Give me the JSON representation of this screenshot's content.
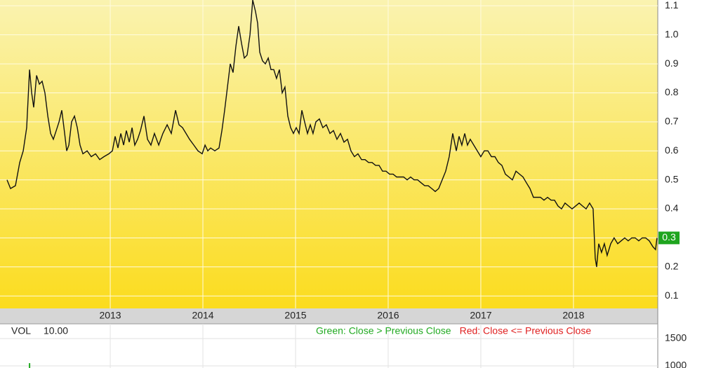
{
  "chart_data": [
    {
      "type": "line",
      "x": [
        2011.886,
        2011.924,
        2011.977,
        2012.023,
        2012.061,
        2012.098,
        2012.129,
        2012.152,
        2012.174,
        2012.205,
        2012.235,
        2012.265,
        2012.295,
        2012.326,
        2012.356,
        2012.386,
        2012.417,
        2012.447,
        2012.477,
        2012.508,
        2012.53,
        2012.553,
        2012.583,
        2012.614,
        2012.644,
        2012.674,
        2012.705,
        2012.75,
        2012.795,
        2012.841,
        2012.886,
        2012.932,
        2012.985,
        2013.023,
        2013.053,
        2013.083,
        2013.114,
        2013.144,
        2013.174,
        2013.205,
        2013.235,
        2013.265,
        2013.295,
        2013.326,
        2013.364,
        2013.402,
        2013.439,
        2013.477,
        2013.523,
        2013.568,
        2013.614,
        2013.659,
        2013.705,
        2013.742,
        2013.78,
        2013.818,
        2013.856,
        2013.902,
        2013.947,
        2013.992,
        2014.023,
        2014.053,
        2014.083,
        2014.129,
        2014.174,
        2014.205,
        2014.235,
        2014.265,
        2014.295,
        2014.326,
        2014.356,
        2014.386,
        2014.417,
        2014.447,
        2014.477,
        2014.508,
        2014.538,
        2014.568,
        2014.591,
        2014.614,
        2014.644,
        2014.674,
        2014.705,
        2014.735,
        2014.765,
        2014.795,
        2014.826,
        2014.856,
        2014.886,
        2014.917,
        2014.947,
        2014.977,
        2015.008,
        2015.038,
        2015.068,
        2015.098,
        2015.129,
        2015.159,
        2015.189,
        2015.22,
        2015.258,
        2015.295,
        2015.333,
        2015.371,
        2015.409,
        2015.447,
        2015.485,
        2015.523,
        2015.561,
        2015.598,
        2015.636,
        2015.674,
        2015.712,
        2015.75,
        2015.788,
        2015.826,
        2015.864,
        2015.902,
        2015.939,
        2015.977,
        2016.015,
        2016.053,
        2016.091,
        2016.129,
        2016.167,
        2016.205,
        2016.242,
        2016.28,
        2016.318,
        2016.356,
        2016.394,
        2016.432,
        2016.47,
        2016.508,
        2016.545,
        2016.583,
        2016.621,
        2016.659,
        2016.697,
        2016.735,
        2016.765,
        2016.795,
        2016.826,
        2016.856,
        2016.886,
        2016.924,
        2016.962,
        2017.0,
        2017.038,
        2017.076,
        2017.114,
        2017.152,
        2017.189,
        2017.227,
        2017.265,
        2017.303,
        2017.341,
        2017.379,
        2017.417,
        2017.455,
        2017.492,
        2017.53,
        2017.568,
        2017.606,
        2017.644,
        2017.682,
        2017.72,
        2017.758,
        2017.795,
        2017.833,
        2017.871,
        2017.909,
        2017.947,
        2017.985,
        2018.023,
        2018.061,
        2018.098,
        2018.136,
        2018.174,
        2018.212,
        2018.235,
        2018.25,
        2018.273,
        2018.303,
        2018.333,
        2018.364,
        2018.402,
        2018.439,
        2018.477,
        2018.515,
        2018.553,
        2018.591,
        2018.629,
        2018.667,
        2018.705,
        2018.742,
        2018.78,
        2018.818,
        2018.856,
        2018.886,
        2018.902
      ],
      "series": [
        {
          "color": "#111111",
          "values": [
            0.5,
            0.47,
            0.48,
            0.56,
            0.6,
            0.68,
            0.88,
            0.8,
            0.75,
            0.86,
            0.83,
            0.84,
            0.8,
            0.72,
            0.66,
            0.64,
            0.67,
            0.7,
            0.74,
            0.66,
            0.6,
            0.62,
            0.7,
            0.72,
            0.68,
            0.62,
            0.59,
            0.6,
            0.58,
            0.59,
            0.57,
            0.58,
            0.59,
            0.6,
            0.65,
            0.61,
            0.66,
            0.62,
            0.67,
            0.63,
            0.68,
            0.62,
            0.64,
            0.67,
            0.72,
            0.64,
            0.62,
            0.66,
            0.62,
            0.66,
            0.69,
            0.66,
            0.74,
            0.69,
            0.68,
            0.66,
            0.64,
            0.62,
            0.6,
            0.59,
            0.62,
            0.6,
            0.61,
            0.6,
            0.61,
            0.67,
            0.74,
            0.82,
            0.9,
            0.87,
            0.96,
            1.03,
            0.97,
            0.92,
            0.93,
            1.0,
            1.12,
            1.08,
            1.04,
            0.94,
            0.91,
            0.9,
            0.92,
            0.88,
            0.88,
            0.85,
            0.88,
            0.8,
            0.82,
            0.72,
            0.68,
            0.66,
            0.68,
            0.66,
            0.74,
            0.7,
            0.66,
            0.69,
            0.66,
            0.7,
            0.71,
            0.68,
            0.69,
            0.66,
            0.67,
            0.64,
            0.66,
            0.63,
            0.64,
            0.6,
            0.58,
            0.59,
            0.57,
            0.57,
            0.56,
            0.56,
            0.55,
            0.55,
            0.53,
            0.53,
            0.52,
            0.52,
            0.51,
            0.51,
            0.51,
            0.5,
            0.51,
            0.5,
            0.5,
            0.49,
            0.48,
            0.48,
            0.47,
            0.46,
            0.47,
            0.5,
            0.53,
            0.58,
            0.66,
            0.6,
            0.65,
            0.62,
            0.66,
            0.62,
            0.64,
            0.62,
            0.6,
            0.58,
            0.6,
            0.6,
            0.58,
            0.58,
            0.56,
            0.55,
            0.52,
            0.51,
            0.5,
            0.53,
            0.52,
            0.51,
            0.49,
            0.47,
            0.44,
            0.44,
            0.44,
            0.43,
            0.44,
            0.43,
            0.43,
            0.41,
            0.4,
            0.42,
            0.41,
            0.4,
            0.41,
            0.42,
            0.41,
            0.4,
            0.42,
            0.4,
            0.23,
            0.2,
            0.28,
            0.25,
            0.28,
            0.24,
            0.28,
            0.3,
            0.28,
            0.29,
            0.3,
            0.29,
            0.3,
            0.3,
            0.29,
            0.3,
            0.3,
            0.29,
            0.27,
            0.26,
            0.3
          ]
        }
      ],
      "last_value": 0.3,
      "xlim": [
        2011.81,
        2018.91
      ],
      "xticks": [
        2013,
        2014,
        2015,
        2016,
        2017,
        2018
      ],
      "ylim": [
        0.057,
        1.12
      ],
      "yticks": [
        0.1,
        0.2,
        0.3,
        0.4,
        0.5,
        0.6,
        0.7,
        0.8,
        0.9,
        {
          "value": 1,
          "label": "1.0"
        },
        1.1
      ],
      "grid": true
    },
    {
      "type": "bar",
      "title": "VOL",
      "subtitle": "10.00",
      "notes": [
        {
          "text": "Green: Close > Previous Close",
          "color": "#22aa22"
        },
        {
          "text": "Red: Close <= Previous Close",
          "color": "#e02020"
        }
      ],
      "x": [
        2012.129
      ],
      "series": [
        {
          "color": "#22aa22",
          "values": [
            1050
          ]
        }
      ],
      "xlim": [
        2011.81,
        2018.91
      ],
      "xticks": [
        2013,
        2014,
        2015,
        2016,
        2017,
        2018
      ],
      "ylim": [
        961,
        1769
      ],
      "yticks": [
        1500,
        1000
      ],
      "grid": true
    }
  ]
}
